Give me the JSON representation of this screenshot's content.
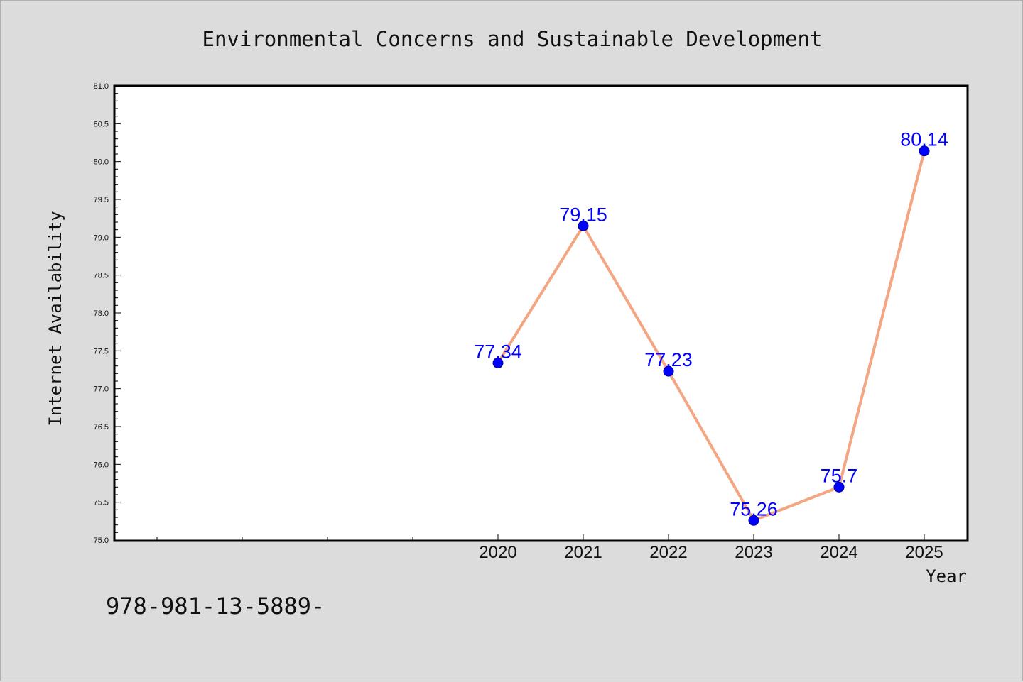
{
  "chart_data": {
    "type": "line",
    "title": "Environmental Concerns and Sustainable Development",
    "xlabel": "Year",
    "ylabel": "Internet Availability",
    "x": [
      "2020",
      "2021",
      "2022",
      "2023",
      "2024",
      "2025"
    ],
    "series": [
      {
        "values": [
          77.34,
          79.15,
          77.23,
          75.26,
          75.7,
          80.14
        ],
        "line_color": "#f4a582",
        "marker_color": "#0000ff",
        "label_color": "#0000ff"
      }
    ],
    "data_labels": [
      "77.34",
      "79.15",
      "77.23",
      "75.26",
      "75.7",
      "80.14"
    ],
    "ylim": [
      75.0,
      81.0
    ],
    "y_ticks": [
      "75.0",
      "75.5",
      "76.0",
      "76.5",
      "77.0",
      "77.5",
      "78.0",
      "78.5",
      "79.0",
      "79.5",
      "80.0",
      "80.5",
      "81.0"
    ],
    "grid": false,
    "legend": false
  },
  "footer_text": "978-981-13-5889-",
  "colors": {
    "background": "#dcdcdc",
    "plot_background": "#ffffff",
    "axis": "#000000"
  }
}
